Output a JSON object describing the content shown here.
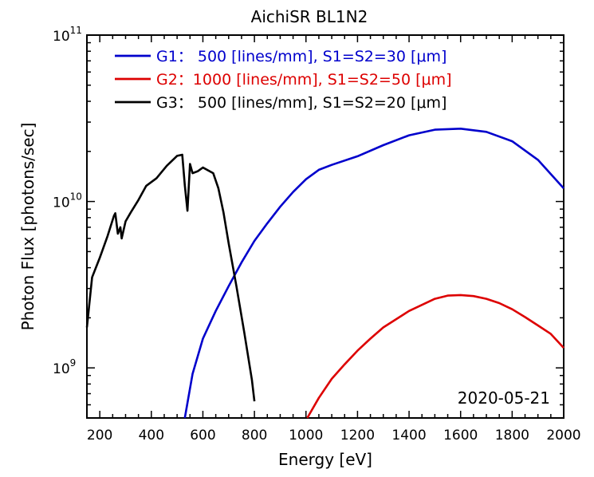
{
  "chart_data": {
    "type": "line",
    "title": "AichiSR BL1N2",
    "xlabel": "Energy [eV]",
    "ylabel": "Photon Flux [photons/sec]",
    "xlim": [
      150,
      2000
    ],
    "ylim": [
      500000000.0,
      100000000000.0
    ],
    "yscale": "log",
    "xticks": [
      200,
      400,
      600,
      800,
      1000,
      1200,
      1400,
      1600,
      1800,
      2000
    ],
    "xtick_labels": [
      "200",
      "400",
      "600",
      "800",
      "1000",
      "1200",
      "1400",
      "1600",
      "1800",
      "2000"
    ],
    "yticks": [
      {
        "value": 1000000000.0,
        "base": "10",
        "exp": "9"
      },
      {
        "value": 10000000000.0,
        "base": "10",
        "exp": "10"
      },
      {
        "value": 100000000000.0,
        "base": "10",
        "exp": "11"
      }
    ],
    "annotation": "2020-05-21",
    "grid": false,
    "legend_position": "top",
    "series": [
      {
        "name": "G1：  500 [lines/mm], S1=S2=30 [μm]",
        "color": "#0000cc",
        "x": [
          530,
          560,
          600,
          650,
          700,
          750,
          800,
          850,
          900,
          950,
          1000,
          1050,
          1100,
          1200,
          1300,
          1400,
          1500,
          1600,
          1700,
          1800,
          1900,
          2000
        ],
        "y": [
          500000000.0,
          920000000.0,
          1500000000.0,
          2200000000.0,
          3100000000.0,
          4300000000.0,
          5800000000.0,
          7400000000.0,
          9300000000.0,
          11400000000.0,
          13600000000.0,
          15500000000.0,
          16600000000.0,
          18700000000.0,
          21800000000.0,
          25000000000.0,
          27000000000.0,
          27400000000.0,
          26200000000.0,
          23000000000.0,
          17800000000.0,
          12000000000.0
        ]
      },
      {
        "name": "G2：1000 [lines/mm], S1=S2=50 [μm]",
        "color": "#dd0000",
        "x": [
          1005,
          1050,
          1100,
          1150,
          1200,
          1250,
          1300,
          1400,
          1500,
          1550,
          1600,
          1650,
          1700,
          1750,
          1800,
          1850,
          1900,
          1950,
          2000
        ],
        "y": [
          500000000.0,
          660000000.0,
          860000000.0,
          1050000000.0,
          1270000000.0,
          1500000000.0,
          1750000000.0,
          2200000000.0,
          2600000000.0,
          2720000000.0,
          2740000000.0,
          2700000000.0,
          2600000000.0,
          2450000000.0,
          2250000000.0,
          2020000000.0,
          1800000000.0,
          1600000000.0,
          1320000000.0
        ]
      },
      {
        "name": "G3：  500 [lines/mm], S1=S2=20 [μm]",
        "color": "#000000",
        "x": [
          150,
          170,
          200,
          230,
          255,
          260,
          270,
          280,
          285,
          300,
          320,
          350,
          380,
          420,
          460,
          500,
          520,
          530,
          540,
          550,
          560,
          580,
          600,
          640,
          660,
          680,
          700,
          730,
          760,
          790,
          800
        ],
        "y": [
          1750000000.0,
          3500000000.0,
          4600000000.0,
          6200000000.0,
          8200000000.0,
          8500000000.0,
          6400000000.0,
          7000000000.0,
          6000000000.0,
          7600000000.0,
          8600000000.0,
          10200000000.0,
          12400000000.0,
          13800000000.0,
          16400000000.0,
          18800000000.0,
          19100000000.0,
          12500000000.0,
          8800000000.0,
          16800000000.0,
          14800000000.0,
          15200000000.0,
          16000000000.0,
          14800000000.0,
          12000000000.0,
          8600000000.0,
          5600000000.0,
          3100000000.0,
          1650000000.0,
          850000000.0,
          630000000.0
        ]
      }
    ]
  }
}
